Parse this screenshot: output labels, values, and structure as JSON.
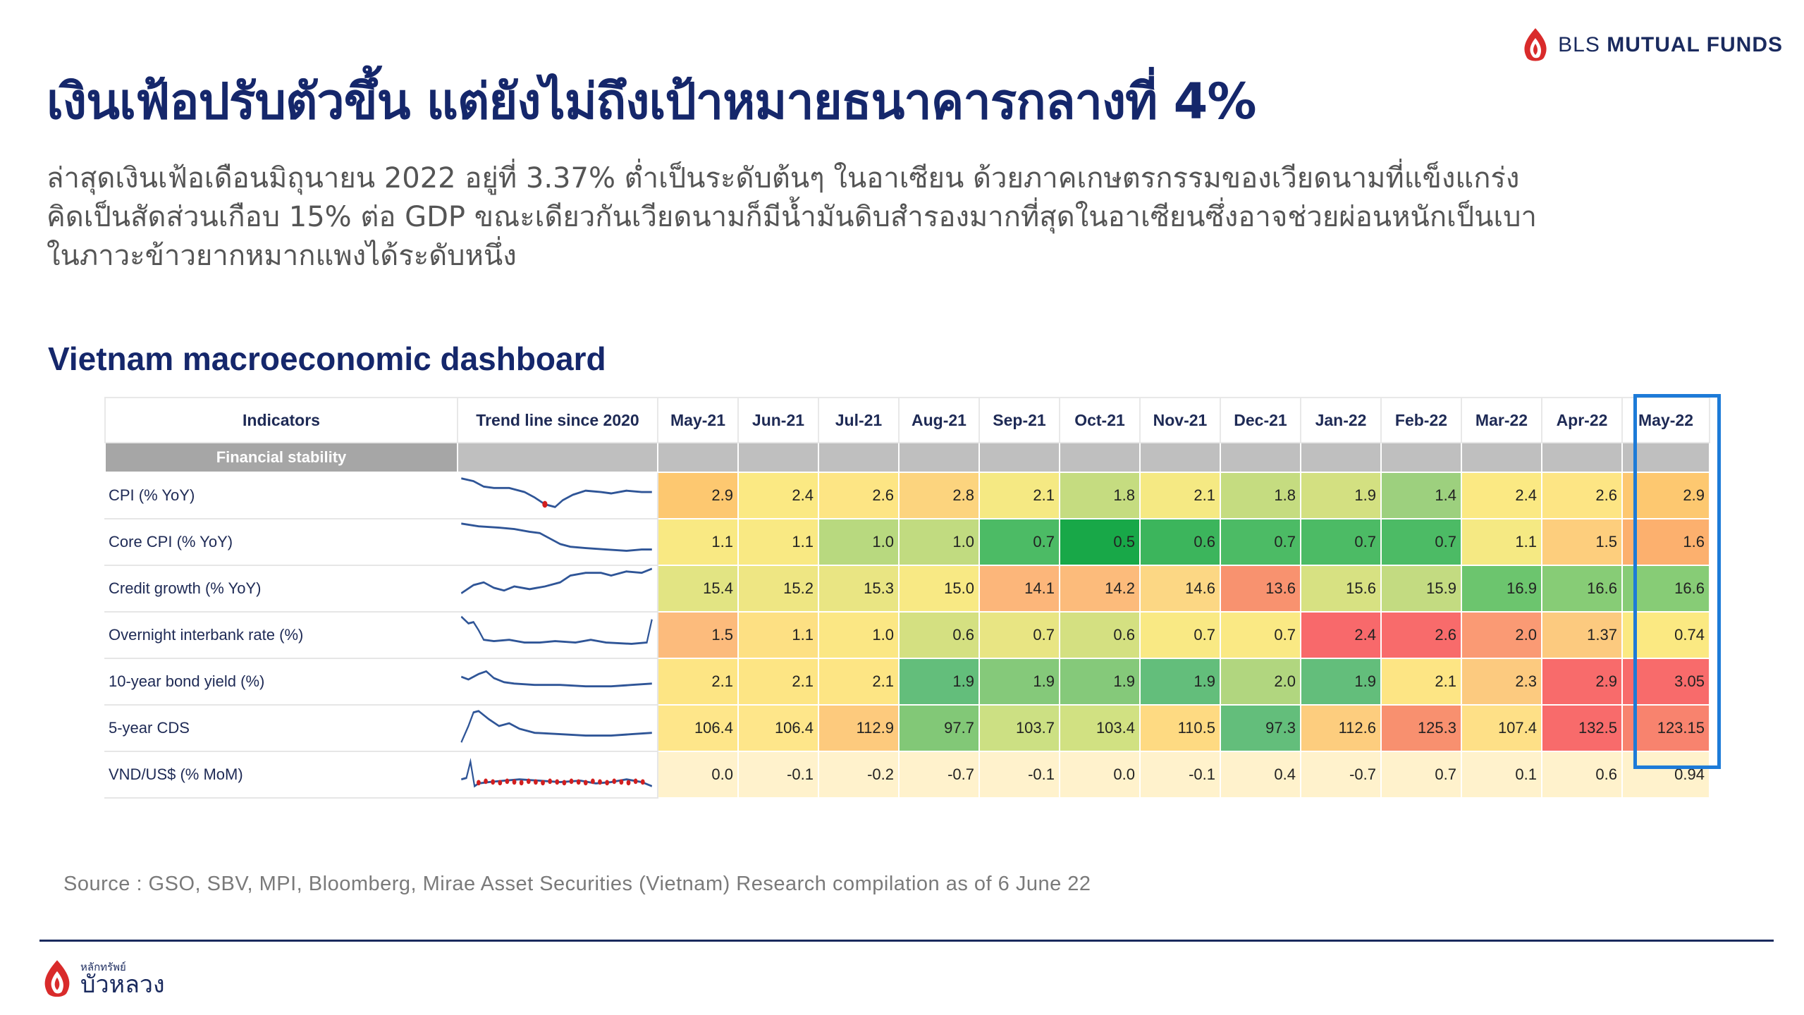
{
  "brand": {
    "name_light": "BLS",
    "name_bold": "MUTUAL FUNDS"
  },
  "title": "เงินเฟ้อปรับตัวขึ้น แต่ยังไม่ถึงเป้าหมายธนาคารกลางที่ 4%",
  "subtitle": {
    "line1": "ล่าสุดเงินเฟ้อเดือนมิถุนายน 2022 อยู่ที่ 3.37% ต่ำเป็นระดับต้นๆ ในอาเซียน ด้วยภาคเกษตรกรรมของเวียดนามที่แข็งแกร่ง",
    "line2": "คิดเป็นสัดส่วนเกือบ 15% ต่อ GDP ขณะเดียวกันเวียดนามก็มีน้ำมันดิบสำรองมากที่สุดในอาเซียนซึ่งอาจช่วยผ่อนหนักเป็นเบา",
    "line3": "ในภาวะข้าวยากหมากแพงได้ระดับหนึ่ง"
  },
  "dashboard_title": "Vietnam macroeconomic dashboard",
  "table": {
    "header_indicators": "Indicators",
    "header_trend": "Trend line since 2020",
    "months": [
      "May-21",
      "Jun-21",
      "Jul-21",
      "Aug-21",
      "Sep-21",
      "Oct-21",
      "Nov-21",
      "Dec-21",
      "Jan-22",
      "Feb-22",
      "Mar-22",
      "Apr-22",
      "May-22"
    ],
    "section": "Financial stability",
    "rows": [
      {
        "name": "CPI (% YoY)",
        "values": [
          "2.9",
          "2.4",
          "2.6",
          "2.8",
          "2.1",
          "1.8",
          "2.1",
          "1.8",
          "1.9",
          "1.4",
          "2.4",
          "2.6",
          "2.9"
        ],
        "colors": [
          "#fdc870",
          "#fbe983",
          "#fde584",
          "#fcd47e",
          "#f5e983",
          "#c5dc80",
          "#f5e983",
          "#c5dc80",
          "#d3e081",
          "#9dd07e",
          "#fbe983",
          "#fde584",
          "#fdc870"
        ]
      },
      {
        "name": "Core CPI (% YoY)",
        "values": [
          "1.1",
          "1.1",
          "1.0",
          "1.0",
          "0.7",
          "0.5",
          "0.6",
          "0.7",
          "0.7",
          "0.7",
          "1.1",
          "1.5",
          "1.6"
        ],
        "colors": [
          "#f9e983",
          "#f9e983",
          "#b8d97f",
          "#c1db80",
          "#4cbb65",
          "#18a848",
          "#3cb55c",
          "#4cbb65",
          "#4cbb65",
          "#4cbb65",
          "#f5e983",
          "#fdce7d",
          "#fcb06e"
        ]
      },
      {
        "name": "Credit growth (% YoY)",
        "values": [
          "15.4",
          "15.2",
          "15.3",
          "15.0",
          "14.1",
          "14.2",
          "14.6",
          "13.6",
          "15.6",
          "15.9",
          "16.9",
          "16.6",
          "16.6"
        ],
        "colors": [
          "#e2e483",
          "#eee683",
          "#e9e583",
          "#f8e984",
          "#fcb67a",
          "#fcbb7b",
          "#fcd784",
          "#f8926f",
          "#d7e182",
          "#c3db81",
          "#6cc56e",
          "#87cc76",
          "#87cc76"
        ]
      },
      {
        "name": "Overnight interbank rate (%)",
        "values": [
          "1.5",
          "1.1",
          "1.0",
          "0.6",
          "0.7",
          "0.6",
          "0.7",
          "0.7",
          "2.4",
          "2.6",
          "2.0",
          "1.37",
          "0.74"
        ],
        "colors": [
          "#fcbb7c",
          "#fde083",
          "#fbe784",
          "#d4e081",
          "#e8e583",
          "#d4e081",
          "#f9e984",
          "#fae984",
          "#f8696b",
          "#f86b6b",
          "#fa9a74",
          "#fcca7f",
          "#fbe982"
        ]
      },
      {
        "name": "10-year bond yield (%)",
        "values": [
          "2.1",
          "2.1",
          "2.1",
          "1.9",
          "1.9",
          "1.9",
          "1.9",
          "2.0",
          "1.9",
          "2.1",
          "2.3",
          "2.9",
          "3.05"
        ],
        "colors": [
          "#fde584",
          "#fde584",
          "#fde584",
          "#63be7b",
          "#85c97a",
          "#85c97a",
          "#63be7b",
          "#b1d67f",
          "#63be7b",
          "#fde584",
          "#fcca7f",
          "#f86b6b",
          "#f86b6b"
        ]
      },
      {
        "name": "5-year CDS",
        "values": [
          "106.4",
          "106.4",
          "112.9",
          "97.7",
          "103.7",
          "103.4",
          "110.5",
          "97.3",
          "112.6",
          "125.3",
          "107.4",
          "132.5",
          "123.15"
        ],
        "colors": [
          "#fee68a",
          "#fee68a",
          "#fdca7d",
          "#82c877",
          "#cce083",
          "#d1e182",
          "#feda82",
          "#63be7b",
          "#fdcd7e",
          "#f8906f",
          "#fee087",
          "#f86b6b",
          "#f8836e"
        ]
      },
      {
        "name": "VND/US$ (% MoM)",
        "values": [
          "0.0",
          "-0.1",
          "-0.2",
          "-0.7",
          "-0.1",
          "0.0",
          "-0.1",
          "0.4",
          "-0.7",
          "0.7",
          "0.1",
          "0.6",
          "0.94"
        ],
        "colors": [
          "#fff2cc",
          "#fff2cc",
          "#fff2cc",
          "#fff2cc",
          "#fff2cc",
          "#fff2cc",
          "#fff2cc",
          "#fff2cc",
          "#fff2cc",
          "#fff2cc",
          "#fff2cc",
          "#fff2cc",
          "#fff2cc"
        ]
      }
    ]
  },
  "source": "Source : GSO, SBV, MPI, Bloomberg, Mirae Asset Securities (Vietnam) Research compilation as of 6 June 22",
  "footer_brand": {
    "small": "หลักทรัพย์",
    "big": "บัวหลวง"
  }
}
